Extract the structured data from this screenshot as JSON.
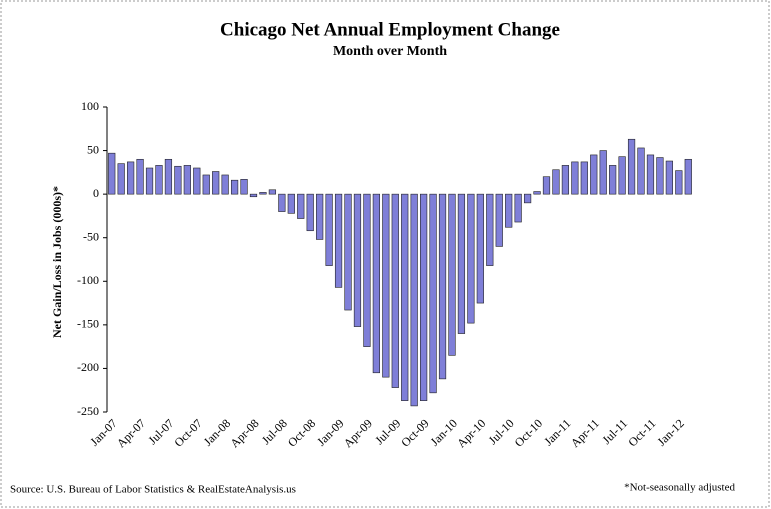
{
  "chart_data": {
    "type": "bar",
    "title": "Chicago Net Annual  Employment  Change",
    "subtitle": "Month over Month",
    "y_label": "Net Gain/Loss in Jobs (000s)*",
    "source": "Source: U.S. Bureau of Labor Statistics & RealEstateAnalysis.us",
    "footnote": "*Not-seasonally adjusted",
    "color": "#7f7fd8",
    "categories": [
      "Jan-07",
      null,
      null,
      "Apr-07",
      null,
      null,
      "Jul-07",
      null,
      null,
      "Oct-07",
      null,
      null,
      "Jan-08",
      null,
      null,
      "Apr-08",
      null,
      null,
      "Jul-08",
      null,
      null,
      "Oct-08",
      null,
      null,
      "Jan-09",
      null,
      null,
      "Apr-09",
      null,
      null,
      "Jul-09",
      null,
      null,
      "Oct-09",
      null,
      null,
      "Jan-10",
      null,
      null,
      "Apr-10",
      null,
      null,
      "Jul-10",
      null,
      null,
      "Oct-10",
      null,
      null,
      "Jan-11",
      null,
      null,
      "Apr-11",
      null,
      null,
      "Jul-11",
      null,
      null,
      "Oct-11",
      null,
      null,
      "Jan-12",
      null
    ],
    "values": [
      47,
      35,
      37,
      40,
      30,
      33,
      40,
      32,
      33,
      30,
      22,
      26,
      22,
      16,
      17,
      -3,
      2,
      5,
      -20,
      -22,
      -28,
      -42,
      -52,
      -82,
      -107,
      -133,
      -152,
      -175,
      -205,
      -210,
      -222,
      -237,
      -243,
      -237,
      -228,
      -212,
      -185,
      -160,
      -148,
      -125,
      -82,
      -60,
      -38,
      -32,
      -10,
      3,
      20,
      28,
      33,
      37,
      37,
      45,
      50,
      33,
      43,
      63,
      53,
      45,
      42,
      38,
      27,
      40
    ],
    "ylim": [
      -250,
      100
    ],
    "yticks": [
      -250,
      -200,
      -150,
      -100,
      -50,
      0,
      50,
      100
    ]
  }
}
